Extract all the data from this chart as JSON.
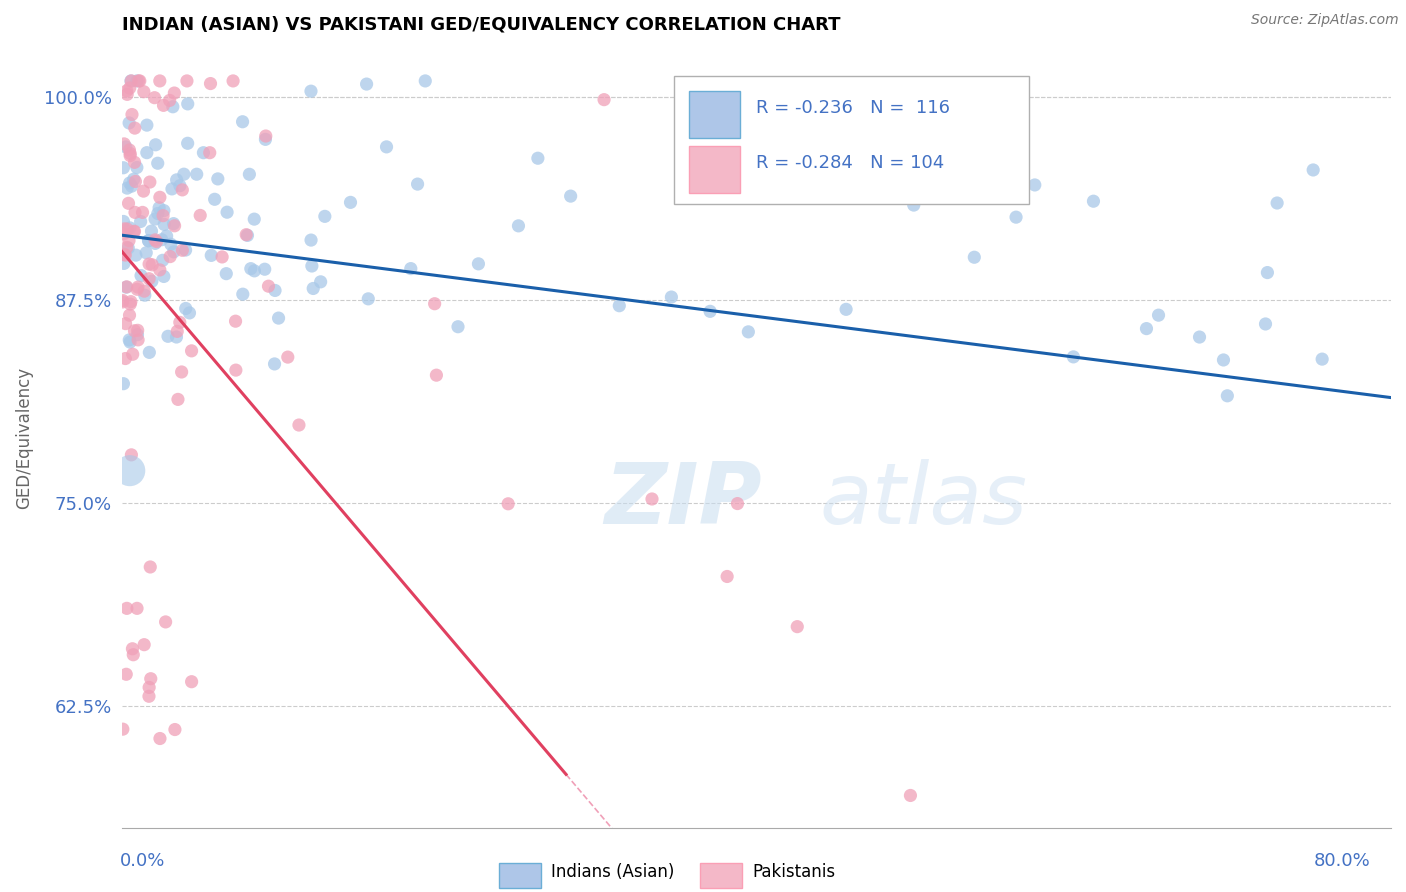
{
  "title": "INDIAN (ASIAN) VS PAKISTANI GED/EQUIVALENCY CORRELATION CHART",
  "source": "Source: ZipAtlas.com",
  "ylabel": "GED/Equivalency",
  "xlim": [
    0.0,
    80.0
  ],
  "ylim": [
    55.0,
    103.0
  ],
  "yticks": [
    62.5,
    75.0,
    87.5,
    100.0
  ],
  "legend_R1": "-0.236",
  "legend_N1": "116",
  "legend_R2": "-0.284",
  "legend_N2": "104",
  "color_indian": "#a8c8e8",
  "color_pakistani": "#f0a0b8",
  "color_indian_line": "#1a5faa",
  "color_pakistani_line": "#e04060",
  "color_pakistani_dash": "#f0a0b8",
  "color_text_blue": "#4472c4",
  "watermark_color": "#c8ddf0"
}
